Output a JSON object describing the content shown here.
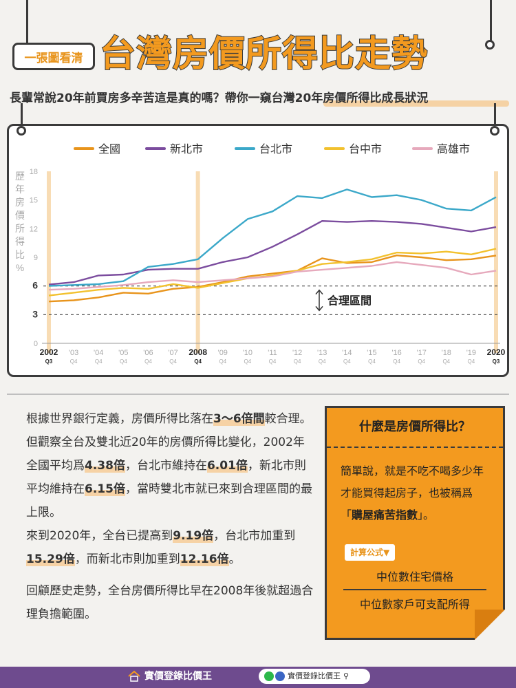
{
  "header": {
    "tag": "一張圖看清",
    "title": "台灣房價所得比走勢",
    "subtitle": "長輩常說20年前買房多辛苦這是真的嗎？帶你一窺台灣20年房價所得比成長狀況"
  },
  "colors": {
    "orange": "#f39a1f",
    "dark": "#3a3a3a",
    "purple_footer": "#6e4b8e"
  },
  "chart_data": {
    "type": "line",
    "ylabel": "歷年房價所得比%",
    "ylim": [
      0,
      18
    ],
    "yticks": [
      0,
      3,
      6,
      9,
      12,
      15,
      18
    ],
    "grid": false,
    "legend_position": "top",
    "x_labels": [
      {
        "year": "2002",
        "quarter": "Q3",
        "bold": true
      },
      {
        "year": "'03",
        "quarter": "Q4"
      },
      {
        "year": "'04",
        "quarter": "Q4"
      },
      {
        "year": "'05",
        "quarter": "Q4"
      },
      {
        "year": "'06",
        "quarter": "Q4"
      },
      {
        "year": "'07",
        "quarter": "Q4"
      },
      {
        "year": "2008",
        "quarter": "Q4",
        "bold": true
      },
      {
        "year": "'09",
        "quarter": "Q4"
      },
      {
        "year": "'10",
        "quarter": "Q4"
      },
      {
        "year": "'11",
        "quarter": "Q4"
      },
      {
        "year": "'12",
        "quarter": "Q4"
      },
      {
        "year": "'13",
        "quarter": "Q4"
      },
      {
        "year": "'14",
        "quarter": "Q4"
      },
      {
        "year": "'15",
        "quarter": "Q4"
      },
      {
        "year": "'16",
        "quarter": "Q4"
      },
      {
        "year": "'17",
        "quarter": "Q4"
      },
      {
        "year": "'18",
        "quarter": "Q4"
      },
      {
        "year": "'19",
        "quarter": "Q4"
      },
      {
        "year": "2020",
        "quarter": "Q3",
        "bold": true
      }
    ],
    "highlight_labels": [
      "2002",
      "2008",
      "2020"
    ],
    "reference_lines": [
      6,
      3
    ],
    "annotation": "合理區間",
    "series": [
      {
        "name": "全國",
        "color": "#e8941c",
        "values": [
          4.38,
          4.5,
          4.8,
          5.3,
          5.2,
          5.7,
          5.9,
          6.4,
          7.0,
          7.3,
          7.6,
          8.9,
          8.4,
          8.5,
          9.2,
          9.0,
          8.7,
          8.8,
          9.19
        ]
      },
      {
        "name": "新北市",
        "color": "#7b4c9e",
        "values": [
          6.15,
          6.4,
          7.1,
          7.2,
          7.7,
          7.8,
          7.8,
          8.5,
          9.0,
          10.1,
          11.4,
          12.8,
          12.7,
          12.8,
          12.7,
          12.5,
          12.1,
          11.7,
          12.16
        ]
      },
      {
        "name": "台北市",
        "color": "#3ba8c9",
        "values": [
          6.01,
          6.1,
          6.2,
          6.5,
          8.0,
          8.3,
          8.8,
          11.0,
          13.0,
          13.8,
          15.4,
          15.2,
          16.1,
          15.3,
          15.5,
          15.0,
          14.1,
          13.9,
          15.29
        ]
      },
      {
        "name": "台中市",
        "color": "#f2c12e",
        "values": [
          5.0,
          5.3,
          5.6,
          5.8,
          5.7,
          6.2,
          5.8,
          6.3,
          6.8,
          7.1,
          7.6,
          8.3,
          8.5,
          8.8,
          9.5,
          9.4,
          9.6,
          9.3,
          9.9
        ]
      },
      {
        "name": "高雄市",
        "color": "#e6a9bc",
        "values": [
          5.6,
          5.7,
          5.9,
          6.1,
          6.4,
          6.6,
          6.4,
          6.6,
          6.8,
          7.0,
          7.5,
          7.7,
          7.9,
          8.1,
          8.5,
          8.2,
          7.9,
          7.2,
          7.6
        ]
      }
    ]
  },
  "body": {
    "p1_pre": "根據世界銀行定義，房價所得比落在",
    "p1_bold": "3～6倍間",
    "p1_post": "較合理。",
    "p2_a": "但觀察全台及雙北近20年的房價所得比變化，",
    "p2_b": "2002年全國平均爲",
    "p2_c": "4.38倍",
    "p2_d": "，台北市維持在",
    "p2_e": "6.01倍",
    "p2_f": "，新北市則平均維持在",
    "p2_g": "6.15倍",
    "p2_h": "，當時雙北市就已來到合理區間的最上限。",
    "p3_a": "來到2020年，全台已提高到",
    "p3_b": "9.19倍",
    "p3_c": "，台北市加重到",
    "p3_d": "15.29倍",
    "p3_e": "，而新北市則加重到",
    "p3_f": "12.16倍",
    "p3_g": "。",
    "p4": "回顧歷史走勢，全台房價所得比早在2008年後就超過合理負擔範圍。"
  },
  "box": {
    "title": "什麼是房價所得比？",
    "text_pre": "簡單說，就是不吃不喝多少年才能買得起房子，也被稱爲「",
    "text_bold": "購屋痛苦指數",
    "text_post": "」。",
    "formula_tag": "計算公式▼",
    "numerator": "中位數住宅價格",
    "denominator": "中位數家戶可支配所得"
  },
  "footer": {
    "brand": "實價登錄比價王",
    "search": "實價登錄比價王"
  }
}
